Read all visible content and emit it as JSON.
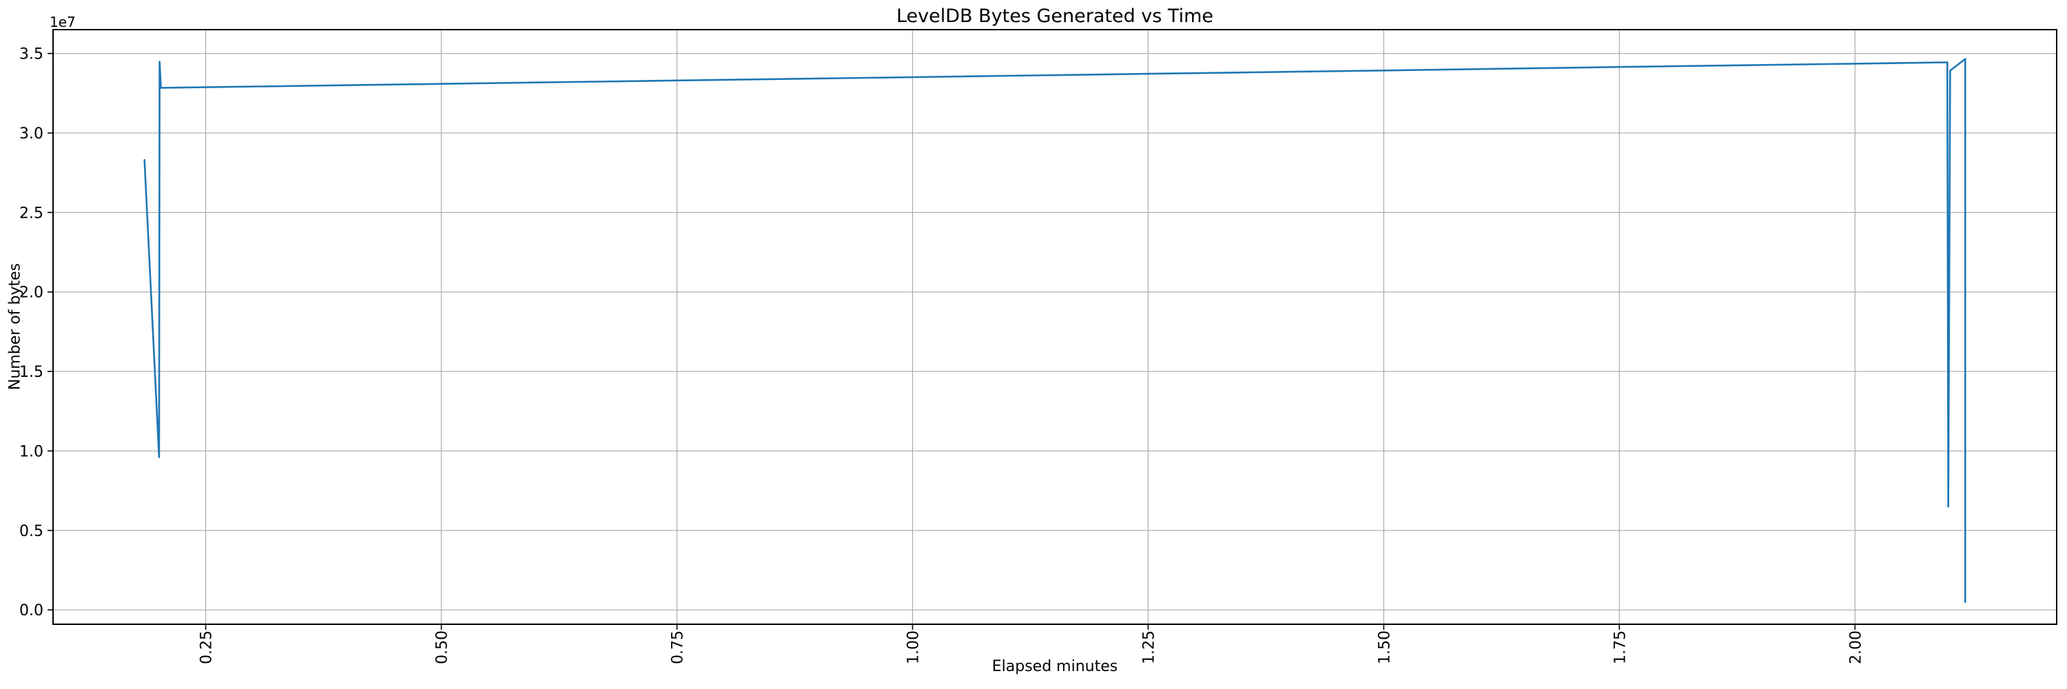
{
  "figure": {
    "title": "LevelDB Bytes Generated vs Time",
    "xlabel": "Elapsed minutes",
    "ylabel": "Number of bytes",
    "offset_text": "1e7"
  },
  "chart_data": {
    "type": "line",
    "title": "LevelDB Bytes Generated vs Time",
    "xlabel": "Elapsed minutes",
    "ylabel": "Number of bytes",
    "offset_text": "1e7",
    "x": [
      0.185,
      0.2005,
      0.201,
      0.2025,
      0.5,
      0.75,
      1.0,
      1.25,
      1.5,
      1.75,
      2.0,
      2.098,
      2.099,
      2.101,
      2.117,
      2.117
    ],
    "y": [
      28300000,
      9600000,
      34480000,
      32840000,
      33090000,
      33300000,
      33510000,
      33720000,
      33930000,
      34150000,
      34360000,
      34440000,
      6500000,
      33920000,
      34660000,
      500000
    ],
    "xlim": [
      0.088,
      2.214
    ],
    "ylim": [
      -900000,
      36500000
    ],
    "xticks": {
      "values": [
        0.25,
        0.5,
        0.75,
        1.0,
        1.25,
        1.5,
        1.75,
        2.0
      ],
      "labels": [
        "0.25",
        "0.50",
        "0.75",
        "1.00",
        "1.25",
        "1.50",
        "1.75",
        "2.00"
      ],
      "rotation": 90
    },
    "yticks": {
      "values": [
        0,
        5000000,
        10000000,
        15000000,
        20000000,
        25000000,
        30000000,
        35000000
      ],
      "labels": [
        "0.0",
        "0.5",
        "1.0",
        "1.5",
        "2.0",
        "2.5",
        "3.0",
        "3.5"
      ]
    },
    "grid": true,
    "legend": null,
    "colors": {
      "line": "#1f77b4",
      "grid": "#b0b0b0",
      "spine": "#000000",
      "text": "#000000",
      "background": "#ffffff"
    }
  }
}
